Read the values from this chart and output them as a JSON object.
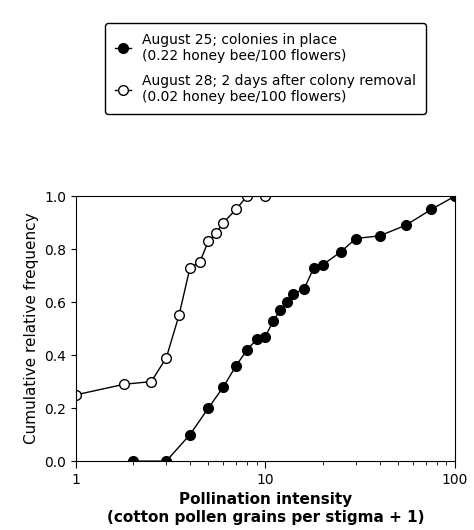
{
  "xlabel": "Pollination intensity\n(cotton pollen grains per stigma + 1)",
  "ylabel": "Cumulative relative frequency",
  "xlim_log": [
    1,
    100
  ],
  "ylim": [
    0.0,
    1.0
  ],
  "series1": {
    "label": "August 25; colonies in place\n(0.22 honey bee/100 flowers)",
    "filled": true,
    "x": [
      2.0,
      3.0,
      4.0,
      5.0,
      6.0,
      7.0,
      8.0,
      9.0,
      10.0,
      11.0,
      12.0,
      13.0,
      14.0,
      16.0,
      18.0,
      20.0,
      25.0,
      30.0,
      40.0,
      55.0,
      75.0,
      100.0
    ],
    "y": [
      0.0,
      0.0,
      0.1,
      0.2,
      0.28,
      0.36,
      0.42,
      0.46,
      0.47,
      0.53,
      0.57,
      0.6,
      0.63,
      0.65,
      0.73,
      0.74,
      0.79,
      0.84,
      0.85,
      0.89,
      0.95,
      1.0
    ]
  },
  "series2": {
    "label": "August 28; 2 days after colony removal\n(0.02 honey bee/100 flowers)",
    "filled": false,
    "x": [
      1.0,
      1.8,
      2.5,
      3.0,
      3.5,
      4.0,
      4.5,
      5.0,
      5.5,
      6.0,
      7.0,
      8.0,
      10.0
    ],
    "y": [
      0.25,
      0.29,
      0.3,
      0.39,
      0.55,
      0.73,
      0.75,
      0.83,
      0.86,
      0.9,
      0.95,
      1.0,
      1.0
    ]
  },
  "xticks": [
    1,
    10,
    100
  ],
  "yticks": [
    0.0,
    0.2,
    0.4,
    0.6,
    0.8,
    1.0
  ],
  "background_color": "#ffffff",
  "markersize": 7,
  "linewidth": 1.0,
  "fontsize_axis_label": 11,
  "fontsize_tick": 10,
  "fontsize_legend": 10
}
